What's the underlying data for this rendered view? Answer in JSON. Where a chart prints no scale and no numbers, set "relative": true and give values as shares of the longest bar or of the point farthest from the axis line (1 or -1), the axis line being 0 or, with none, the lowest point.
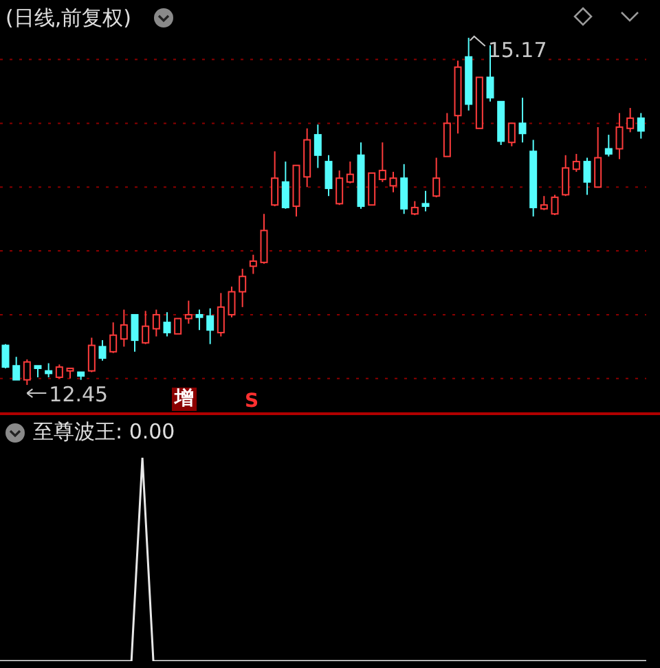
{
  "chart_data": [
    {
      "type": "candlestick",
      "title": "(日线,前复权)",
      "categories": [
        null,
        null,
        null,
        null,
        null,
        null,
        null,
        null,
        null,
        null,
        null,
        null,
        null,
        null,
        null,
        null,
        null,
        null,
        null,
        null,
        null,
        null,
        null,
        null,
        null,
        null,
        null,
        null,
        null,
        null,
        null,
        null,
        null,
        null,
        null,
        null,
        null,
        null,
        null,
        null,
        null,
        null,
        null,
        null,
        null,
        null,
        null,
        null,
        null,
        null,
        null,
        null,
        null,
        null,
        null,
        null,
        null,
        null,
        null,
        null
      ],
      "ohlc": [
        [
          12.76,
          12.77,
          12.58,
          12.59
        ],
        [
          12.6,
          12.67,
          12.49,
          12.49
        ],
        [
          12.49,
          12.65,
          12.45,
          12.63
        ],
        [
          12.6,
          12.6,
          12.51,
          12.58
        ],
        [
          12.56,
          12.62,
          12.51,
          12.54
        ],
        [
          12.51,
          12.61,
          12.5,
          12.59
        ],
        [
          12.56,
          12.58,
          12.5,
          12.58
        ],
        [
          12.55,
          12.55,
          12.49,
          12.52
        ],
        [
          12.56,
          12.82,
          12.55,
          12.76
        ],
        [
          12.75,
          12.8,
          12.64,
          12.66
        ],
        [
          12.71,
          12.94,
          12.7,
          12.84
        ],
        [
          12.81,
          13.04,
          12.75,
          12.92
        ],
        [
          13.0,
          13.0,
          12.71,
          12.8
        ],
        [
          12.78,
          13.03,
          12.77,
          12.91
        ],
        [
          12.89,
          13.04,
          12.83,
          13.0
        ],
        [
          12.94,
          13.02,
          12.83,
          12.86
        ],
        [
          12.85,
          12.97,
          12.85,
          12.97
        ],
        [
          12.97,
          13.11,
          12.93,
          13.0
        ],
        [
          13.0,
          13.04,
          12.88,
          12.98
        ],
        [
          12.99,
          13.05,
          12.77,
          12.88
        ],
        [
          12.86,
          13.17,
          12.83,
          13.06
        ],
        [
          13.0,
          13.22,
          12.98,
          13.18
        ],
        [
          13.18,
          13.36,
          13.06,
          13.3
        ],
        [
          13.38,
          13.47,
          13.32,
          13.42
        ],
        [
          13.41,
          13.79,
          13.4,
          13.66
        ],
        [
          13.86,
          14.28,
          13.85,
          14.07
        ],
        [
          14.04,
          14.2,
          13.83,
          13.84
        ],
        [
          13.85,
          14.17,
          13.77,
          14.17
        ],
        [
          14.08,
          14.46,
          14.0,
          14.37
        ],
        [
          14.41,
          14.49,
          14.15,
          14.25
        ],
        [
          14.2,
          14.25,
          13.93,
          13.99
        ],
        [
          13.87,
          14.13,
          13.86,
          14.07
        ],
        [
          14.04,
          14.2,
          14.03,
          14.1
        ],
        [
          14.25,
          14.35,
          13.83,
          13.85
        ],
        [
          13.86,
          14.11,
          13.86,
          14.11
        ],
        [
          14.06,
          14.35,
          14.04,
          14.13
        ],
        [
          14.01,
          14.12,
          13.96,
          14.07
        ],
        [
          14.07,
          14.18,
          13.79,
          13.83
        ],
        [
          13.79,
          13.89,
          13.78,
          13.84
        ],
        [
          13.87,
          13.97,
          13.81,
          13.85
        ],
        [
          13.93,
          14.23,
          13.92,
          14.07
        ],
        [
          14.24,
          14.58,
          14.24,
          14.5
        ],
        [
          14.56,
          14.99,
          14.42,
          14.94
        ],
        [
          15.02,
          15.17,
          14.6,
          14.65
        ],
        [
          14.46,
          14.86,
          14.46,
          14.86
        ],
        [
          14.86,
          15.11,
          14.67,
          14.7
        ],
        [
          14.67,
          14.67,
          14.33,
          14.36
        ],
        [
          14.35,
          14.5,
          14.32,
          14.5
        ],
        [
          14.5,
          14.7,
          14.35,
          14.42
        ],
        [
          14.28,
          14.37,
          13.77,
          13.84
        ],
        [
          13.83,
          13.93,
          13.82,
          13.86
        ],
        [
          13.79,
          13.94,
          13.78,
          13.92
        ],
        [
          13.94,
          14.25,
          13.93,
          14.15
        ],
        [
          14.14,
          14.26,
          14.12,
          14.2
        ],
        [
          14.2,
          14.23,
          13.94,
          14.04
        ],
        [
          14.0,
          14.47,
          14.0,
          14.23
        ],
        [
          14.3,
          14.41,
          14.24,
          14.26
        ],
        [
          14.3,
          14.58,
          14.22,
          14.47
        ],
        [
          14.46,
          14.62,
          14.43,
          14.54
        ],
        [
          14.54,
          14.58,
          14.38,
          14.44
        ]
      ],
      "colors": [
        "#54fcfc",
        "#54fcfc",
        "#ff3c3c",
        "#54fcfc",
        "#54fcfc",
        "#ff3c3c",
        "#ff3c3c",
        "#54fcfc",
        "#ff3c3c",
        "#54fcfc",
        "#ff3c3c",
        "#ff3c3c",
        "#54fcfc",
        "#ff3c3c",
        "#ff3c3c",
        "#54fcfc",
        "#ff3c3c",
        "#ff3c3c",
        "#54fcfc",
        "#54fcfc",
        "#ff3c3c",
        "#ff3c3c",
        "#ff3c3c",
        "#ff3c3c",
        "#ff3c3c",
        "#ff3c3c",
        "#54fcfc",
        "#ff3c3c",
        "#ff3c3c",
        "#54fcfc",
        "#54fcfc",
        "#ff3c3c",
        "#ff3c3c",
        "#54fcfc",
        "#ff3c3c",
        "#ff3c3c",
        "#ff3c3c",
        "#54fcfc",
        "#ff3c3c",
        "#54fcfc",
        "#ff3c3c",
        "#ff3c3c",
        "#ff3c3c",
        "#54fcfc",
        "#ff3c3c",
        "#54fcfc",
        "#54fcfc",
        "#ff3c3c",
        "#54fcfc",
        "#54fcfc",
        "#ff3c3c",
        "#ff3c3c",
        "#ff3c3c",
        "#ff3c3c",
        "#54fcfc",
        "#ff3c3c",
        "#54fcfc",
        "#ff3c3c",
        "#ff3c3c",
        "#54fcfc"
      ],
      "yticks": [
        {
          "value": 12.5,
          "label": null
        },
        {
          "value": 13,
          "label": null
        },
        {
          "value": 13.5,
          "label": null
        },
        {
          "value": 14,
          "label": null
        },
        {
          "value": 14.5,
          "label": null
        },
        {
          "value": 15,
          "label": null
        }
      ],
      "tick_labels": false,
      "grid": "y",
      "annotations": [
        "15.17",
        "12.45",
        "增",
        "S"
      ]
    },
    {
      "type": "line",
      "title": "至尊波王: 0.00",
      "relative": true,
      "categories": [
        null,
        null,
        null,
        null,
        null,
        null,
        null,
        null,
        null,
        null,
        null,
        null,
        null,
        null,
        null,
        null,
        null,
        null,
        null,
        null,
        null,
        null,
        null,
        null,
        null,
        null,
        null,
        null,
        null,
        null,
        null,
        null,
        null,
        null,
        null,
        null,
        null,
        null,
        null,
        null,
        null,
        null,
        null,
        null,
        null,
        null,
        null,
        null,
        null,
        null,
        null,
        null,
        null,
        null,
        null,
        null,
        null,
        null,
        null,
        null
      ],
      "series": [
        {
          "color": "#e8e8e8",
          "values": [
            0,
            0,
            0,
            0,
            0,
            0,
            0,
            0,
            0,
            0,
            0,
            0,
            0,
            1,
            0,
            0,
            0,
            0,
            0,
            0,
            0,
            0,
            0,
            0,
            0,
            0,
            0,
            0,
            0,
            0,
            0,
            0,
            0,
            0,
            0,
            0,
            0,
            0,
            0,
            0,
            0,
            0,
            0,
            0,
            0,
            0,
            0,
            0,
            0,
            0,
            0,
            0,
            0,
            0,
            0,
            0,
            0,
            0,
            0,
            0
          ]
        }
      ],
      "marker": "none",
      "line_style": "solid"
    }
  ]
}
